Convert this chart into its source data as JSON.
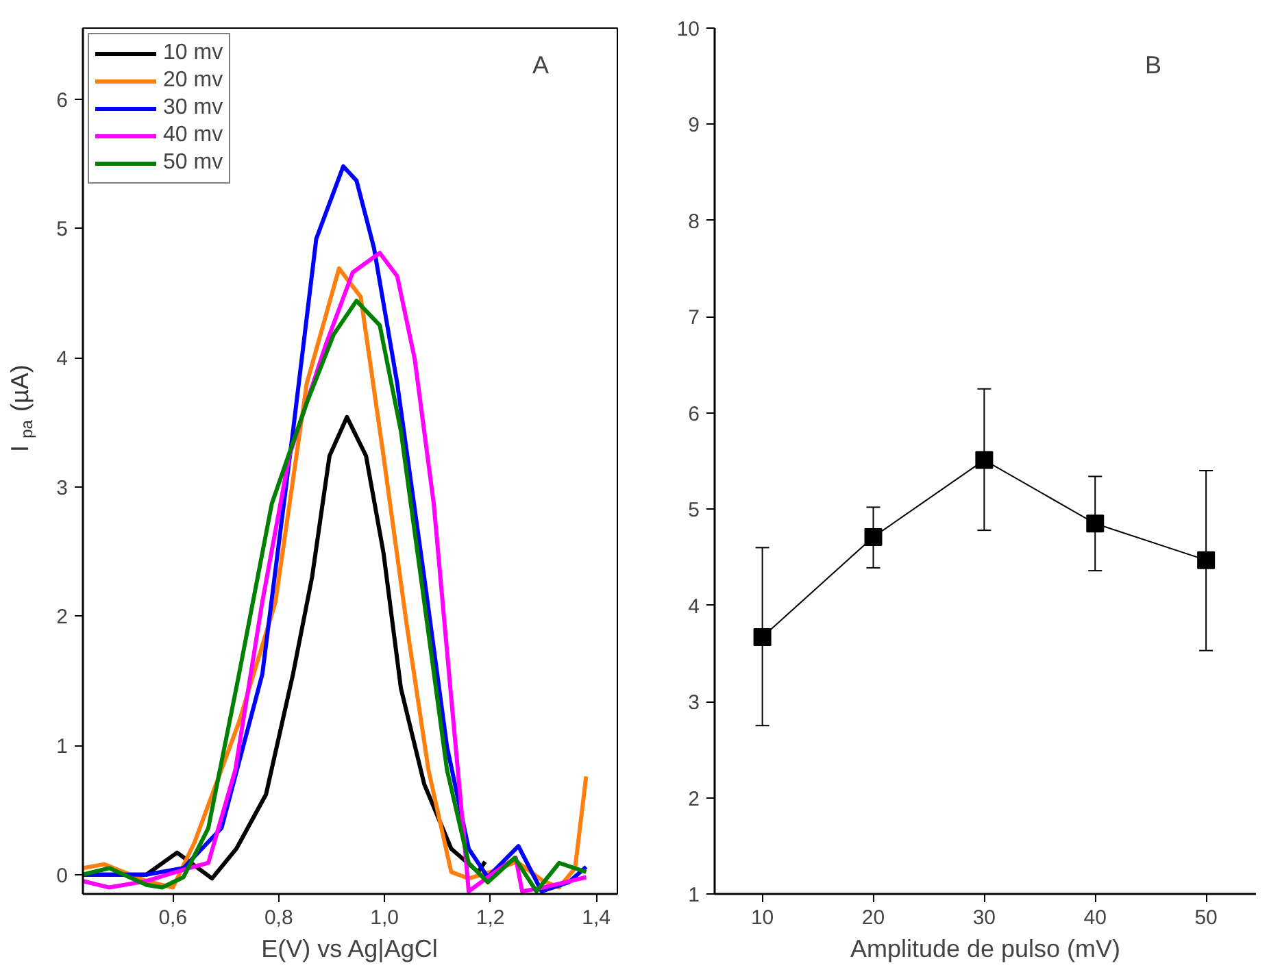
{
  "chart_data": [
    {
      "type": "line",
      "xlabel": "E(V) vs Ag|AgCl",
      "ylabel": "I$_{pa}$ (µA)",
      "annotations": [
        "A"
      ],
      "legend": "top left",
      "grid": false,
      "line_style": "solid",
      "xlim": [
        0.43,
        1.44
      ],
      "ylim": [
        -0.15,
        6.55
      ],
      "xticks": [
        {
          "value": 0.6,
          "label": "0,6"
        },
        {
          "value": 0.8,
          "label": "0,8"
        },
        {
          "value": 1.0,
          "label": "1,0"
        },
        {
          "value": 1.2,
          "label": "1,2"
        },
        {
          "value": 1.4,
          "label": "1,4"
        }
      ],
      "yticks": [
        0,
        1,
        2,
        3,
        4,
        5,
        6
      ],
      "series": [
        {
          "name": "10 mv",
          "color": "#000000",
          "x": [
            0.43,
            0.5,
            0.55,
            0.608,
            0.674,
            0.72,
            0.776,
            0.827,
            0.863,
            0.896,
            0.929,
            0.965,
            0.998,
            1.031,
            1.075,
            1.126,
            1.177,
            1.19
          ],
          "values": [
            0.0,
            0.0,
            0.0,
            0.17,
            -0.03,
            0.2,
            0.62,
            1.55,
            2.3,
            3.24,
            3.54,
            3.24,
            2.49,
            1.44,
            0.7,
            0.2,
            0.02,
            0.1
          ]
        },
        {
          "name": "20 mv",
          "color": "#ff7f0e",
          "x": [
            0.43,
            0.47,
            0.55,
            0.6,
            0.641,
            0.725,
            0.794,
            0.853,
            0.914,
            0.955,
            0.998,
            1.042,
            1.083,
            1.126,
            1.159,
            1.2,
            1.25,
            1.3,
            1.33,
            1.36,
            1.381
          ],
          "values": [
            0.05,
            0.08,
            -0.05,
            -0.1,
            0.25,
            1.18,
            2.11,
            3.8,
            4.69,
            4.47,
            3.24,
            1.93,
            0.81,
            0.02,
            -0.03,
            0.02,
            0.1,
            -0.05,
            -0.1,
            0.05,
            0.76
          ]
        },
        {
          "name": "30 mv",
          "color": "#0000ff",
          "x": [
            0.43,
            0.55,
            0.62,
            0.692,
            0.769,
            0.827,
            0.871,
            0.922,
            0.947,
            0.98,
            1.024,
            1.075,
            1.118,
            1.159,
            1.195,
            1.253,
            1.297,
            1.348,
            1.381
          ],
          "values": [
            0.0,
            0.0,
            0.05,
            0.36,
            1.55,
            3.43,
            4.92,
            5.48,
            5.37,
            4.85,
            3.8,
            2.3,
            0.99,
            0.2,
            -0.02,
            0.22,
            -0.13,
            -0.06,
            0.06
          ]
        },
        {
          "name": "40 mv",
          "color": "#ff00ff",
          "x": [
            0.43,
            0.48,
            0.55,
            0.63,
            0.667,
            0.718,
            0.769,
            0.82,
            0.889,
            0.94,
            0.991,
            1.024,
            1.057,
            1.093,
            1.126,
            1.151,
            1.159,
            1.202,
            1.248,
            1.26,
            1.3,
            1.381
          ],
          "values": [
            -0.05,
            -0.1,
            -0.05,
            0.05,
            0.09,
            0.81,
            2.11,
            3.24,
            4.1,
            4.66,
            4.81,
            4.63,
            3.99,
            2.87,
            1.37,
            0.25,
            -0.13,
            0.0,
            0.13,
            -0.13,
            -0.1,
            -0.02
          ]
        },
        {
          "name": "50 mv",
          "color": "#008000",
          "x": [
            0.43,
            0.48,
            0.55,
            0.58,
            0.62,
            0.667,
            0.725,
            0.787,
            0.853,
            0.904,
            0.947,
            0.991,
            1.031,
            1.075,
            1.118,
            1.159,
            1.195,
            1.246,
            1.287,
            1.33,
            1.381
          ],
          "values": [
            0.0,
            0.05,
            -0.08,
            -0.1,
            -0.02,
            0.36,
            1.55,
            2.87,
            3.65,
            4.18,
            4.44,
            4.25,
            3.43,
            2.11,
            0.81,
            0.09,
            -0.06,
            0.13,
            -0.13,
            0.09,
            0.02
          ]
        }
      ]
    },
    {
      "type": "line",
      "xlabel": "Amplitude de pulso (mV)",
      "annotations": [
        "B"
      ],
      "grid": false,
      "marker": "square",
      "line_style": "solid",
      "xlim": [
        5.7,
        54.5
      ],
      "ylim": [
        1,
        10
      ],
      "xticks": [
        10,
        20,
        30,
        40,
        50
      ],
      "yticks": [
        1,
        2,
        3,
        4,
        5,
        6,
        7,
        8,
        9,
        10
      ],
      "series": [
        {
          "color": "#000000",
          "x": [
            10,
            20,
            30,
            40,
            50
          ],
          "values": [
            3.67,
            4.71,
            5.51,
            4.85,
            4.47
          ],
          "errors": [
            [
              2.75,
              4.6
            ],
            [
              4.39,
              5.02
            ],
            [
              4.78,
              6.25
            ],
            [
              4.36,
              5.34
            ],
            [
              3.53,
              5.4
            ]
          ]
        }
      ]
    }
  ]
}
